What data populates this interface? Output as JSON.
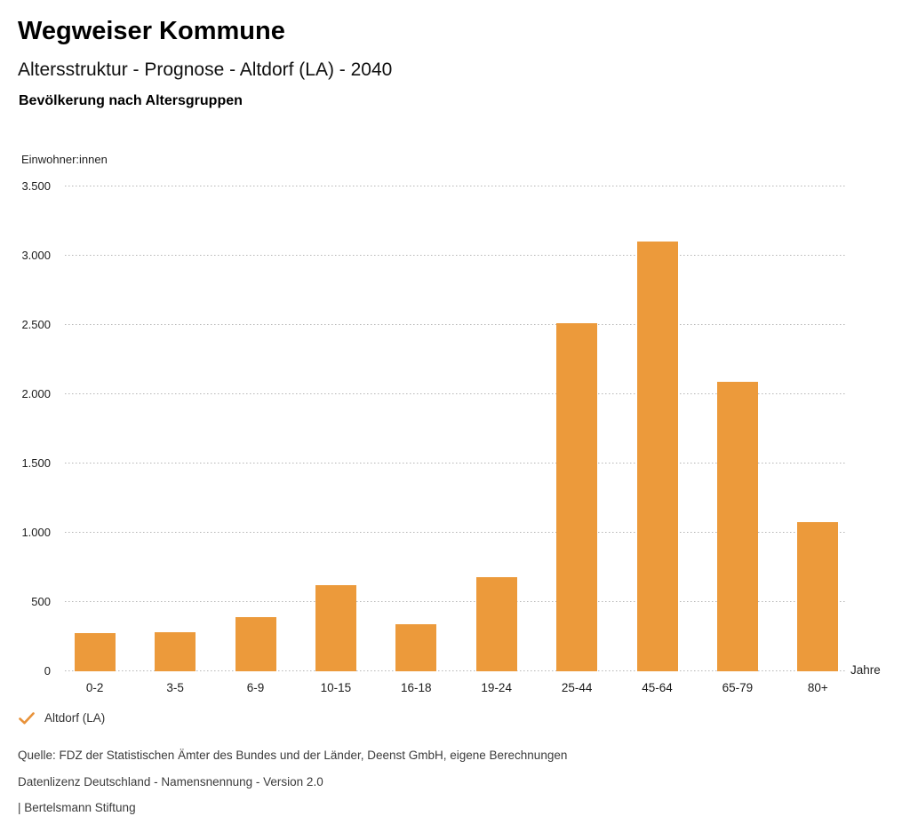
{
  "header": {
    "title": "Wegweiser Kommune",
    "subtitle": "Altersstruktur - Prognose - Altdorf (LA) - 2040",
    "section_title": "Bevölkerung nach Altersgruppen"
  },
  "chart_data": {
    "type": "bar",
    "title": "Bevölkerung nach Altersgruppen",
    "categories": [
      "0-2",
      "3-5",
      "6-9",
      "10-15",
      "16-18",
      "19-24",
      "25-44",
      "45-64",
      "65-79",
      "80+"
    ],
    "series": [
      {
        "name": "Altdorf (LA)",
        "values": [
          275,
          285,
          390,
          620,
          340,
          680,
          2510,
          3105,
          2090,
          1075
        ]
      }
    ],
    "ylabel": "Einwohner:innen",
    "xlabel": "Jahre",
    "ylim": [
      0,
      3500
    ],
    "ytick_interval": 500,
    "ytick_labels": [
      "0",
      "500",
      "1.000",
      "1.500",
      "2.000",
      "2.500",
      "3.000",
      "3.500"
    ],
    "grid": "horizontal-dotted",
    "legend_position": "bottom-left",
    "bar_color": "#EC9A3B"
  },
  "legend": {
    "items": [
      {
        "label": "Altdorf (LA)",
        "icon": "check-icon",
        "icon_color": "#E8923A"
      }
    ]
  },
  "footer": {
    "source": "Quelle: FDZ der Statistischen Ämter des Bundes und der Länder, Deenst GmbH, eigene Berechnungen",
    "license": "Datenlizenz Deutschland - Namensnennung - Version 2.0",
    "attribution": "| Bertelsmann Stiftung"
  },
  "colors": {
    "bar": "#EC9A3B",
    "checkmark": "#E8923A",
    "gridline": "#B6B6B6",
    "text": "#1A1A1A"
  }
}
